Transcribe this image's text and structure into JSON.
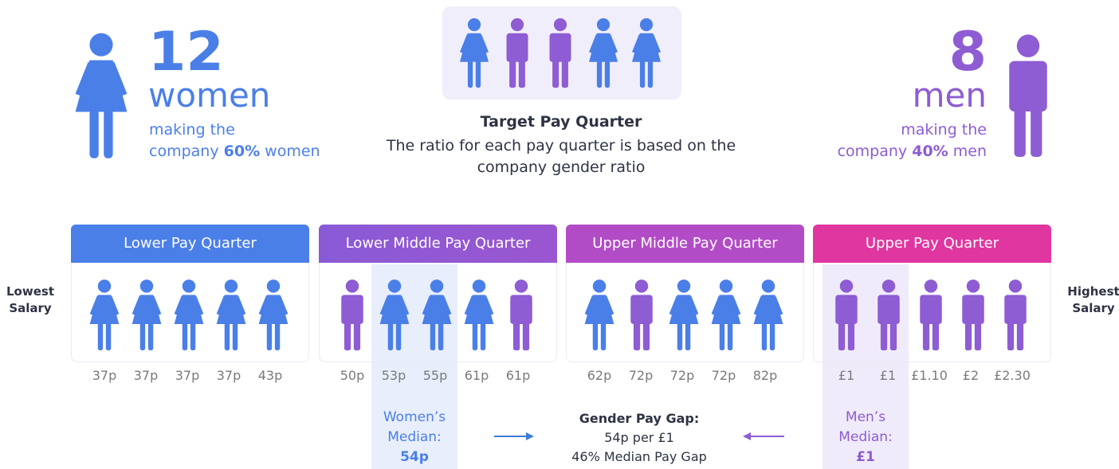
{
  "women_summary": {
    "count": 12,
    "label": "women",
    "line1": "making the",
    "line2_start": "company",
    "share": "60%",
    "line2_end": "women"
  },
  "target": {
    "title": "Target Pay Quarter",
    "description": "The ratio for each pay quarter is based on the company gender ratio"
  },
  "men_summary": {
    "count": 8,
    "label": "men",
    "line1": "making the",
    "line2_start": "company",
    "share": "40%",
    "line2_end": "men"
  },
  "scale": {
    "low": "Lowest Salary",
    "high": "Highest Salary"
  },
  "quarters": [
    {
      "title": "Lower Pay Quarter",
      "pay": [
        "37p",
        "37p",
        "37p",
        "37p",
        "43p"
      ]
    },
    {
      "title": "Lower Middle Pay Quarter",
      "pay": [
        "50p",
        "53p",
        "55p",
        "61p",
        "61p"
      ]
    },
    {
      "title": "Upper Middle Pay Quarter",
      "pay": [
        "62p",
        "72p",
        "72p",
        "72p",
        "82p"
      ]
    },
    {
      "title": "Upper Pay Quarter",
      "pay": [
        "£1",
        "£1",
        "£1.10",
        "£2",
        "£2.30"
      ]
    }
  ],
  "women_median": {
    "label": "Women’s Median:",
    "value": "54p"
  },
  "gap": {
    "title": "Gender Pay Gap:",
    "line1": "54p per £1",
    "line2": "46% Median Pay Gap"
  },
  "men_median": {
    "label": "Men’s Median:",
    "value": "£1"
  }
}
